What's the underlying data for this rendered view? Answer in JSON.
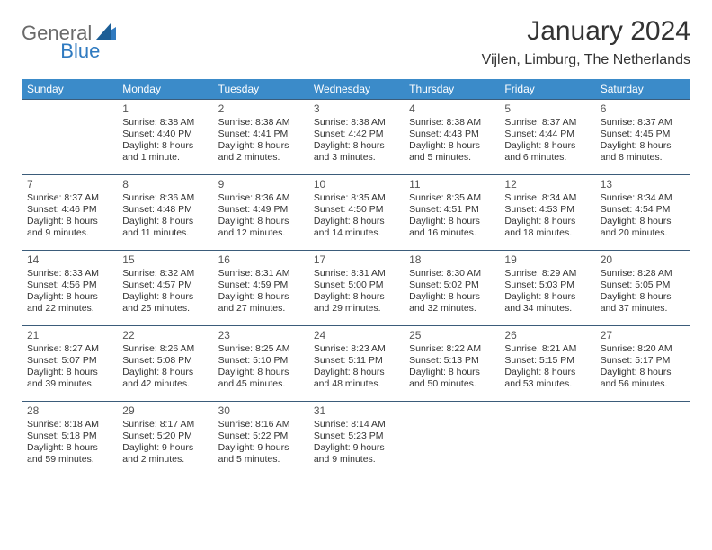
{
  "logo": {
    "part1": "General",
    "part2": "Blue"
  },
  "header": {
    "month_title": "January 2024",
    "location": "Vijlen, Limburg, The Netherlands"
  },
  "colors": {
    "header_bg": "#3b8bc9",
    "header_fg": "#ffffff",
    "border": "#3b5c7a",
    "logo_gray": "#6a6a6a",
    "logo_blue": "#2f7ac0"
  },
  "weekdays": [
    "Sunday",
    "Monday",
    "Tuesday",
    "Wednesday",
    "Thursday",
    "Friday",
    "Saturday"
  ],
  "weeks": [
    [
      null,
      {
        "n": "1",
        "sr": "Sunrise: 8:38 AM",
        "ss": "Sunset: 4:40 PM",
        "d1": "Daylight: 8 hours",
        "d2": "and 1 minute."
      },
      {
        "n": "2",
        "sr": "Sunrise: 8:38 AM",
        "ss": "Sunset: 4:41 PM",
        "d1": "Daylight: 8 hours",
        "d2": "and 2 minutes."
      },
      {
        "n": "3",
        "sr": "Sunrise: 8:38 AM",
        "ss": "Sunset: 4:42 PM",
        "d1": "Daylight: 8 hours",
        "d2": "and 3 minutes."
      },
      {
        "n": "4",
        "sr": "Sunrise: 8:38 AM",
        "ss": "Sunset: 4:43 PM",
        "d1": "Daylight: 8 hours",
        "d2": "and 5 minutes."
      },
      {
        "n": "5",
        "sr": "Sunrise: 8:37 AM",
        "ss": "Sunset: 4:44 PM",
        "d1": "Daylight: 8 hours",
        "d2": "and 6 minutes."
      },
      {
        "n": "6",
        "sr": "Sunrise: 8:37 AM",
        "ss": "Sunset: 4:45 PM",
        "d1": "Daylight: 8 hours",
        "d2": "and 8 minutes."
      }
    ],
    [
      {
        "n": "7",
        "sr": "Sunrise: 8:37 AM",
        "ss": "Sunset: 4:46 PM",
        "d1": "Daylight: 8 hours",
        "d2": "and 9 minutes."
      },
      {
        "n": "8",
        "sr": "Sunrise: 8:36 AM",
        "ss": "Sunset: 4:48 PM",
        "d1": "Daylight: 8 hours",
        "d2": "and 11 minutes."
      },
      {
        "n": "9",
        "sr": "Sunrise: 8:36 AM",
        "ss": "Sunset: 4:49 PM",
        "d1": "Daylight: 8 hours",
        "d2": "and 12 minutes."
      },
      {
        "n": "10",
        "sr": "Sunrise: 8:35 AM",
        "ss": "Sunset: 4:50 PM",
        "d1": "Daylight: 8 hours",
        "d2": "and 14 minutes."
      },
      {
        "n": "11",
        "sr": "Sunrise: 8:35 AM",
        "ss": "Sunset: 4:51 PM",
        "d1": "Daylight: 8 hours",
        "d2": "and 16 minutes."
      },
      {
        "n": "12",
        "sr": "Sunrise: 8:34 AM",
        "ss": "Sunset: 4:53 PM",
        "d1": "Daylight: 8 hours",
        "d2": "and 18 minutes."
      },
      {
        "n": "13",
        "sr": "Sunrise: 8:34 AM",
        "ss": "Sunset: 4:54 PM",
        "d1": "Daylight: 8 hours",
        "d2": "and 20 minutes."
      }
    ],
    [
      {
        "n": "14",
        "sr": "Sunrise: 8:33 AM",
        "ss": "Sunset: 4:56 PM",
        "d1": "Daylight: 8 hours",
        "d2": "and 22 minutes."
      },
      {
        "n": "15",
        "sr": "Sunrise: 8:32 AM",
        "ss": "Sunset: 4:57 PM",
        "d1": "Daylight: 8 hours",
        "d2": "and 25 minutes."
      },
      {
        "n": "16",
        "sr": "Sunrise: 8:31 AM",
        "ss": "Sunset: 4:59 PM",
        "d1": "Daylight: 8 hours",
        "d2": "and 27 minutes."
      },
      {
        "n": "17",
        "sr": "Sunrise: 8:31 AM",
        "ss": "Sunset: 5:00 PM",
        "d1": "Daylight: 8 hours",
        "d2": "and 29 minutes."
      },
      {
        "n": "18",
        "sr": "Sunrise: 8:30 AM",
        "ss": "Sunset: 5:02 PM",
        "d1": "Daylight: 8 hours",
        "d2": "and 32 minutes."
      },
      {
        "n": "19",
        "sr": "Sunrise: 8:29 AM",
        "ss": "Sunset: 5:03 PM",
        "d1": "Daylight: 8 hours",
        "d2": "and 34 minutes."
      },
      {
        "n": "20",
        "sr": "Sunrise: 8:28 AM",
        "ss": "Sunset: 5:05 PM",
        "d1": "Daylight: 8 hours",
        "d2": "and 37 minutes."
      }
    ],
    [
      {
        "n": "21",
        "sr": "Sunrise: 8:27 AM",
        "ss": "Sunset: 5:07 PM",
        "d1": "Daylight: 8 hours",
        "d2": "and 39 minutes."
      },
      {
        "n": "22",
        "sr": "Sunrise: 8:26 AM",
        "ss": "Sunset: 5:08 PM",
        "d1": "Daylight: 8 hours",
        "d2": "and 42 minutes."
      },
      {
        "n": "23",
        "sr": "Sunrise: 8:25 AM",
        "ss": "Sunset: 5:10 PM",
        "d1": "Daylight: 8 hours",
        "d2": "and 45 minutes."
      },
      {
        "n": "24",
        "sr": "Sunrise: 8:23 AM",
        "ss": "Sunset: 5:11 PM",
        "d1": "Daylight: 8 hours",
        "d2": "and 48 minutes."
      },
      {
        "n": "25",
        "sr": "Sunrise: 8:22 AM",
        "ss": "Sunset: 5:13 PM",
        "d1": "Daylight: 8 hours",
        "d2": "and 50 minutes."
      },
      {
        "n": "26",
        "sr": "Sunrise: 8:21 AM",
        "ss": "Sunset: 5:15 PM",
        "d1": "Daylight: 8 hours",
        "d2": "and 53 minutes."
      },
      {
        "n": "27",
        "sr": "Sunrise: 8:20 AM",
        "ss": "Sunset: 5:17 PM",
        "d1": "Daylight: 8 hours",
        "d2": "and 56 minutes."
      }
    ],
    [
      {
        "n": "28",
        "sr": "Sunrise: 8:18 AM",
        "ss": "Sunset: 5:18 PM",
        "d1": "Daylight: 8 hours",
        "d2": "and 59 minutes."
      },
      {
        "n": "29",
        "sr": "Sunrise: 8:17 AM",
        "ss": "Sunset: 5:20 PM",
        "d1": "Daylight: 9 hours",
        "d2": "and 2 minutes."
      },
      {
        "n": "30",
        "sr": "Sunrise: 8:16 AM",
        "ss": "Sunset: 5:22 PM",
        "d1": "Daylight: 9 hours",
        "d2": "and 5 minutes."
      },
      {
        "n": "31",
        "sr": "Sunrise: 8:14 AM",
        "ss": "Sunset: 5:23 PM",
        "d1": "Daylight: 9 hours",
        "d2": "and 9 minutes."
      },
      null,
      null,
      null
    ]
  ]
}
